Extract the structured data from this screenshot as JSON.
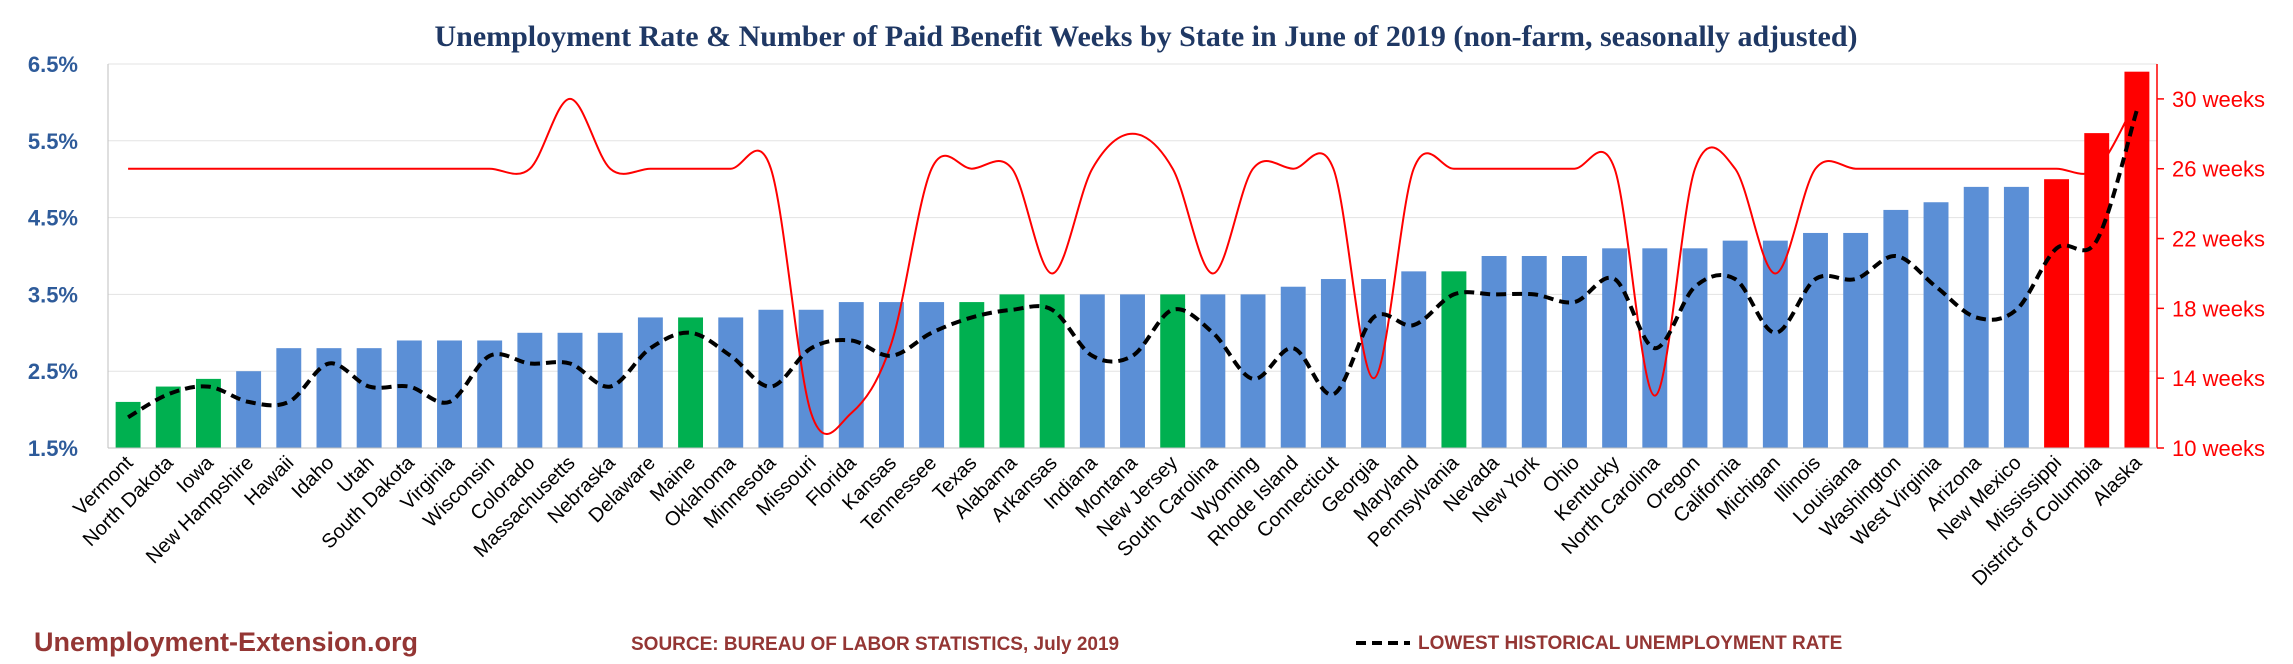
{
  "chart_data": {
    "type": "bar",
    "title": "Unemployment Rate & Number of Paid Benefit Weeks by State in June of 2019 (non-farm, seasonally adjusted)",
    "categories": [
      "Vermont",
      "North Dakota",
      "Iowa",
      "New Hampshire",
      "Hawaii",
      "Idaho",
      "Utah",
      "South Dakota",
      "Virginia",
      "Wisconsin",
      "Colorado",
      "Massachusetts",
      "Nebraska",
      "Delaware",
      "Maine",
      "Oklahoma",
      "Minnesota",
      "Missouri",
      "Florida",
      "Kansas",
      "Tennessee",
      "Texas",
      "Alabama",
      "Arkansas",
      "Indiana",
      "Montana",
      "New Jersey",
      "South Carolina",
      "Wyoming",
      "Rhode Island",
      "Connecticut",
      "Georgia",
      "Maryland",
      "Pennsylvania",
      "Nevada",
      "New York",
      "Ohio",
      "Kentucky",
      "North Carolina",
      "Oregon",
      "California",
      "Michigan",
      "Illinois",
      "Louisiana",
      "Washington",
      "West Virginia",
      "Arizona",
      "New Mexico",
      "Mississippi",
      "District of Columbia",
      "Alaska"
    ],
    "series": [
      {
        "values": [
          2.1,
          2.3,
          2.4,
          2.5,
          2.8,
          2.8,
          2.8,
          2.9,
          2.9,
          2.9,
          3.0,
          3.0,
          3.0,
          3.2,
          3.2,
          3.2,
          3.3,
          3.3,
          3.4,
          3.4,
          3.4,
          3.4,
          3.5,
          3.5,
          3.5,
          3.5,
          3.5,
          3.5,
          3.5,
          3.6,
          3.7,
          3.7,
          3.8,
          3.8,
          4.0,
          4.0,
          4.0,
          4.1,
          4.1,
          4.1,
          4.2,
          4.2,
          4.3,
          4.3,
          4.6,
          4.7,
          4.9,
          4.9,
          5.0,
          5.6,
          6.4
        ],
        "colors": [
          "#00b050",
          "#00b050",
          "#00b050",
          "#5b8fd6",
          "#5b8fd6",
          "#5b8fd6",
          "#5b8fd6",
          "#5b8fd6",
          "#5b8fd6",
          "#5b8fd6",
          "#5b8fd6",
          "#5b8fd6",
          "#5b8fd6",
          "#5b8fd6",
          "#00b050",
          "#5b8fd6",
          "#5b8fd6",
          "#5b8fd6",
          "#5b8fd6",
          "#5b8fd6",
          "#5b8fd6",
          "#00b050",
          "#00b050",
          "#00b050",
          "#5b8fd6",
          "#5b8fd6",
          "#00b050",
          "#5b8fd6",
          "#5b8fd6",
          "#5b8fd6",
          "#5b8fd6",
          "#5b8fd6",
          "#5b8fd6",
          "#00b050",
          "#5b8fd6",
          "#5b8fd6",
          "#5b8fd6",
          "#5b8fd6",
          "#5b8fd6",
          "#5b8fd6",
          "#5b8fd6",
          "#5b8fd6",
          "#5b8fd6",
          "#5b8fd6",
          "#5b8fd6",
          "#5b8fd6",
          "#5b8fd6",
          "#5b8fd6",
          "#ff0000",
          "#ff0000",
          "#ff0000"
        ]
      },
      {
        "name": "LOWEST HISTORICAL UNEMPLOYMENT RATE",
        "style": "dashed",
        "color": "#000000",
        "values": [
          1.9,
          2.2,
          2.3,
          2.1,
          2.1,
          2.6,
          2.3,
          2.3,
          2.1,
          2.7,
          2.6,
          2.6,
          2.3,
          2.8,
          3.0,
          2.7,
          2.3,
          2.8,
          2.9,
          2.7,
          3.0,
          3.2,
          3.3,
          3.3,
          2.7,
          2.7,
          3.3,
          3.0,
          2.4,
          2.8,
          2.2,
          3.2,
          3.1,
          3.5,
          3.5,
          3.5,
          3.4,
          3.7,
          2.8,
          3.6,
          3.7,
          3.0,
          3.7,
          3.7,
          4.0,
          3.6,
          3.2,
          3.3,
          4.1,
          4.2,
          5.9
        ]
      },
      {
        "name": "Number of Paid Benefit Weeks",
        "color": "#ff0000",
        "axis": "right",
        "values": [
          26,
          26,
          26,
          26,
          26,
          26,
          26,
          26,
          26,
          26,
          26,
          30,
          26,
          26,
          26,
          26,
          26,
          12,
          12,
          16,
          26,
          26,
          26,
          20,
          26,
          28,
          26,
          20,
          26,
          26,
          26,
          14,
          26,
          26,
          26,
          26,
          26,
          26,
          13,
          26,
          26,
          20,
          26,
          26,
          26,
          26,
          26,
          26,
          26,
          26,
          30
        ]
      }
    ],
    "y_left": {
      "range": [
        1.5,
        6.5
      ],
      "ticks": [
        "1.5%",
        "2.5%",
        "3.5%",
        "4.5%",
        "5.5%",
        "6.5%"
      ]
    },
    "y_right": {
      "range": [
        10,
        32
      ],
      "ticks": [
        "10 weeks",
        "14 weeks",
        "18 weeks",
        "22 weeks",
        "26 weeks",
        "30 weeks"
      ]
    },
    "grid": true,
    "legend": "bottom"
  },
  "footer": {
    "site": "Unemployment-Extension.org",
    "source": "SOURCE: BUREAU OF LABOR STATISTICS, July 2019",
    "legend_label": "LOWEST HISTORICAL UNEMPLOYMENT RATE"
  }
}
